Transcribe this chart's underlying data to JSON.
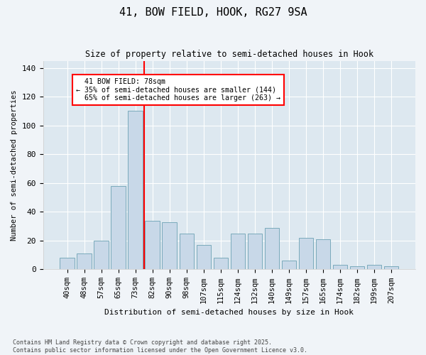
{
  "title": "41, BOW FIELD, HOOK, RG27 9SA",
  "subtitle": "Size of property relative to semi-detached houses in Hook",
  "xlabel": "Distribution of semi-detached houses by size in Hook",
  "ylabel": "Number of semi-detached properties",
  "bar_color": "#c8d8e8",
  "bar_edge_color": "#7aaabb",
  "categories": [
    "40sqm",
    "48sqm",
    "57sqm",
    "65sqm",
    "73sqm",
    "82sqm",
    "90sqm",
    "98sqm",
    "107sqm",
    "115sqm",
    "124sqm",
    "132sqm",
    "140sqm",
    "149sqm",
    "157sqm",
    "165sqm",
    "174sqm",
    "182sqm",
    "199sqm",
    "207sqm"
  ],
  "values": [
    8,
    11,
    20,
    58,
    110,
    34,
    33,
    25,
    17,
    8,
    25,
    25,
    29,
    6,
    22,
    21,
    3,
    2,
    3,
    2
  ],
  "ylim": [
    0,
    145
  ],
  "yticks": [
    0,
    20,
    40,
    60,
    80,
    100,
    120,
    140
  ],
  "property_label": "41 BOW FIELD: 78sqm",
  "pct_smaller": 35,
  "pct_larger": 65,
  "count_smaller": 144,
  "count_larger": 263,
  "vline_x_index": 4.5,
  "footer": "Contains HM Land Registry data © Crown copyright and database right 2025.\nContains public sector information licensed under the Open Government Licence v3.0.",
  "fig_bg_color": "#f0f4f8",
  "plot_bg_color": "#dde8f0"
}
